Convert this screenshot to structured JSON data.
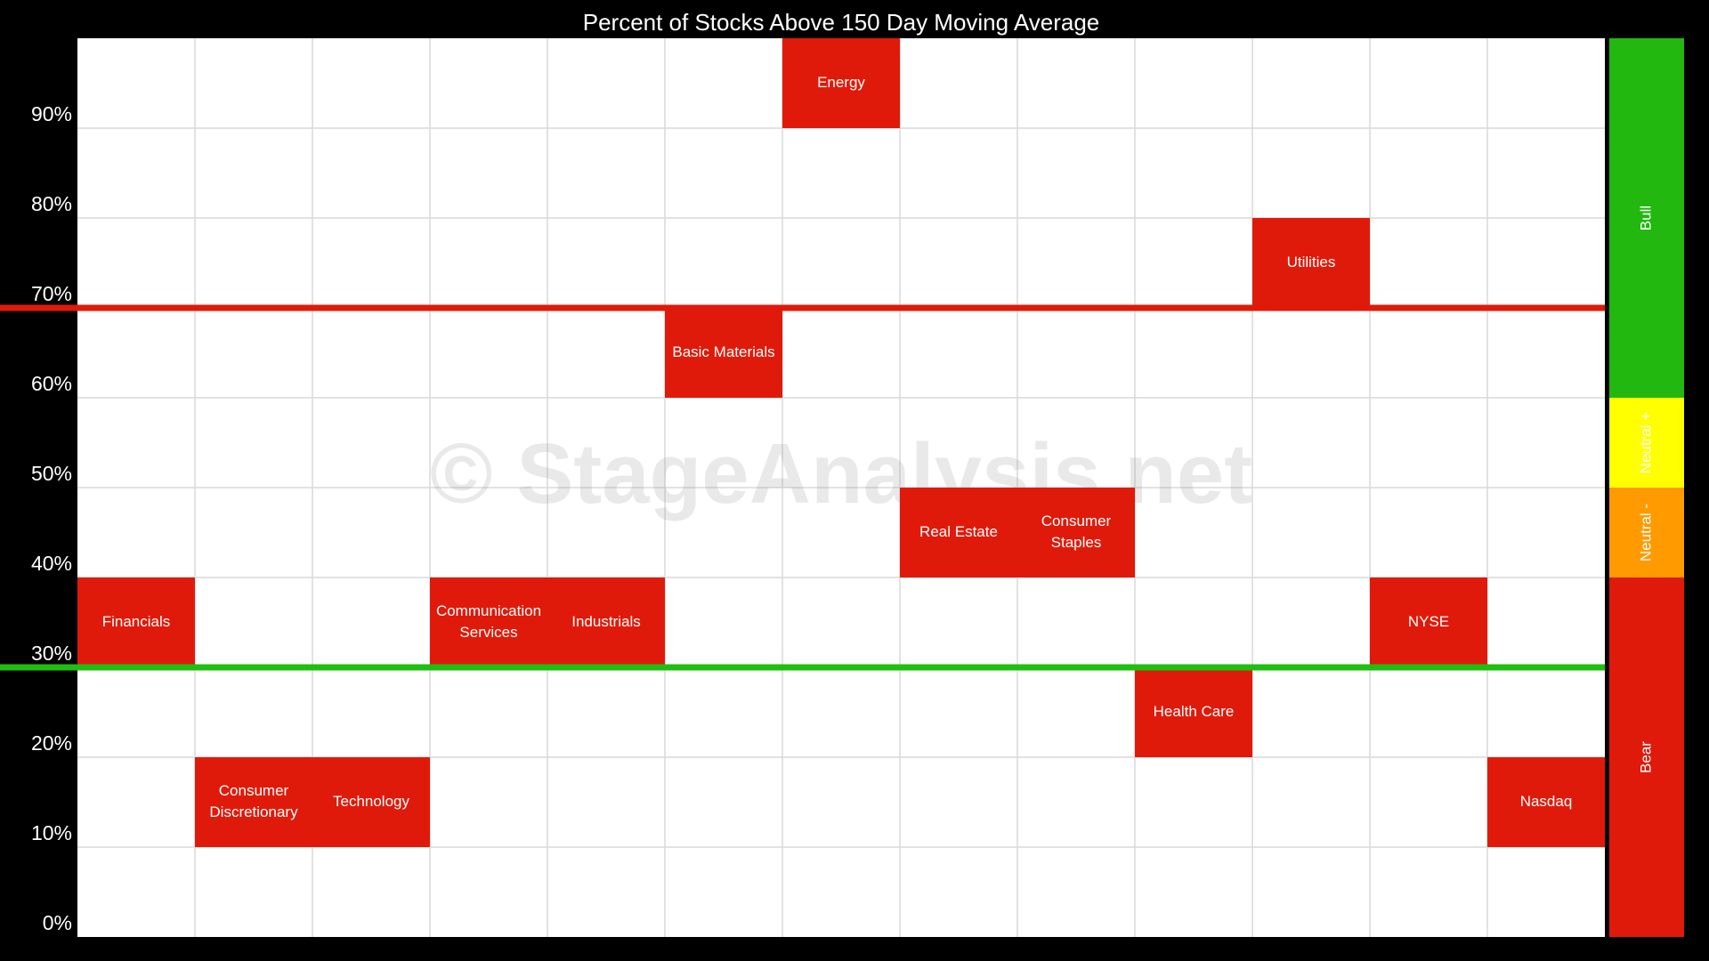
{
  "chart_data": {
    "type": "heatmap",
    "title": "Percent of Stocks Above 150 Day Moving Average",
    "watermark": "© StageAnalysis.net",
    "ylim": [
      0,
      100
    ],
    "y_ticks": [
      "0%",
      "10%",
      "20%",
      "30%",
      "40%",
      "50%",
      "60%",
      "70%",
      "80%",
      "90%"
    ],
    "y_tick_values": [
      0,
      10,
      20,
      30,
      40,
      50,
      60,
      70,
      80,
      90
    ],
    "categories": [
      [
        "Financials"
      ],
      [
        "Consumer",
        "Discretionary"
      ],
      [
        "Technology"
      ],
      [
        "Communication",
        "Services"
      ],
      [
        "Industrials"
      ],
      [
        "Basic Materials"
      ],
      [
        "Energy"
      ],
      [
        "Real Estate"
      ],
      [
        "Consumer",
        "Staples"
      ],
      [
        "Health Care"
      ],
      [
        "Utilities"
      ],
      [
        "NYSE"
      ],
      [
        "Nasdaq"
      ]
    ],
    "values": [
      35,
      15,
      15,
      35,
      35,
      65,
      95,
      45,
      45,
      25,
      75,
      35,
      15
    ],
    "thresholds": [
      {
        "value": 70,
        "color": "#e01a0a"
      },
      {
        "value": 30,
        "color": "#1fbf10"
      }
    ],
    "zones": [
      {
        "label": "Bull",
        "from": 60,
        "to": 100,
        "color": "#22b80f"
      },
      {
        "label": "Neutral +",
        "from": 50,
        "to": 60,
        "color": "#ffff00"
      },
      {
        "label": "Neutral -",
        "from": 40,
        "to": 50,
        "color": "#ff9a00"
      },
      {
        "label": "Bear",
        "from": 0,
        "to": 40,
        "color": "#e01a0a"
      }
    ],
    "colors": {
      "background": "#000000",
      "plot": "#ffffff",
      "grid": "#d9d9d9",
      "cell": "#e01a0a"
    },
    "grid": true,
    "legend_placement": "right"
  }
}
